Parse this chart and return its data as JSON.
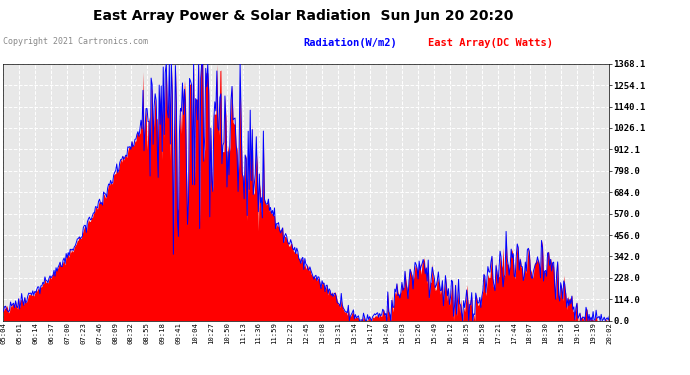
{
  "title": "East Array Power & Solar Radiation  Sun Jun 20 20:20",
  "copyright": "Copyright 2021 Cartronics.com",
  "legend_radiation": "Radiation(W/m2)",
  "legend_east_array": "East Array(DC Watts)",
  "radiation_color": "blue",
  "east_array_color": "red",
  "y_ticks": [
    0.0,
    114.0,
    228.0,
    342.0,
    456.0,
    570.0,
    684.0,
    798.0,
    912.1,
    1026.1,
    1140.1,
    1254.1,
    1368.1
  ],
  "y_min": 0.0,
  "y_max": 1368.1,
  "background_color": "#ffffff",
  "plot_bg_color": "#e8e8e8",
  "grid_color": "#ffffff",
  "x_labels": [
    "05:04",
    "05:61",
    "06:14",
    "06:37",
    "07:00",
    "07:23",
    "07:46",
    "08:09",
    "08:32",
    "08:55",
    "09:18",
    "09:41",
    "10:04",
    "10:27",
    "10:50",
    "11:13",
    "11:36",
    "11:59",
    "12:22",
    "12:45",
    "13:08",
    "13:31",
    "13:54",
    "14:17",
    "14:40",
    "15:03",
    "15:26",
    "15:49",
    "16:12",
    "16:35",
    "16:58",
    "17:21",
    "17:44",
    "18:07",
    "18:30",
    "18:53",
    "19:16",
    "19:39",
    "20:02"
  ]
}
